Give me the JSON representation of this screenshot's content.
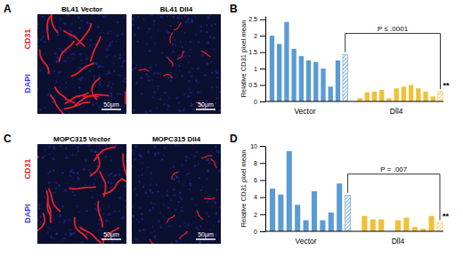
{
  "chart_data": [
    {
      "type": "bar",
      "title": "B",
      "y_label": "Relative CD31 pixel mean",
      "ylim": [
        0,
        2.6
      ],
      "yticks": [
        0,
        0.5,
        1,
        1.5,
        2,
        2.5
      ],
      "tick_labels": "y",
      "series": [
        {
          "name": "Vector",
          "color": "#5b9bd5",
          "values": [
            2.0,
            1.75,
            2.42,
            1.6,
            1.38,
            1.25,
            1.2,
            1.0,
            0.45,
            1.25
          ],
          "mean": 1.42
        },
        {
          "name": "Dll4",
          "color": "#f2c037",
          "values": [
            0.1,
            0.28,
            0.3,
            0.35,
            0.1,
            0.4,
            0.45,
            0.5,
            0.4,
            0.3,
            0.15
          ],
          "mean": 0.3
        }
      ],
      "annotations": [
        "P ≤ .0001",
        "**"
      ]
    },
    {
      "type": "bar",
      "title": "D",
      "y_label": "Relative CD31 pixel mean",
      "ylim": [
        0,
        10
      ],
      "yticks": [
        0,
        2,
        4,
        6,
        8,
        10
      ],
      "tick_labels": "y",
      "series": [
        {
          "name": "Vector",
          "color": "#5b9bd5",
          "values": [
            5.0,
            4.3,
            9.4,
            3.1,
            1.3,
            4.7,
            1.3,
            2.2,
            5.6
          ],
          "mean": 4.2
        },
        {
          "name": "Dll4",
          "color": "#f2c037",
          "values": [
            1.8,
            1.4,
            1.4,
            0,
            1.3,
            1.6,
            0.5,
            0.3,
            1.8
          ],
          "mean": 1.0
        }
      ],
      "annotations": [
        "P = .007",
        "**"
      ]
    }
  ],
  "images": [
    {
      "title": "A",
      "panels": [
        "BL41 Vector",
        "BL41 Dll4"
      ],
      "stains": [
        {
          "name": "CD31",
          "color": "#e8202a"
        },
        {
          "name": "DAPI",
          "color": "#3a3adf"
        }
      ],
      "scale_bar": "50μm"
    },
    {
      "title": "C",
      "panels": [
        "MOPC315 Vector",
        "MOPC315 Dll4"
      ],
      "stains": [
        {
          "name": "CD31",
          "color": "#e8202a"
        },
        {
          "name": "DAPI",
          "color": "#3a3adf"
        }
      ],
      "scale_bar": "50μm"
    }
  ]
}
